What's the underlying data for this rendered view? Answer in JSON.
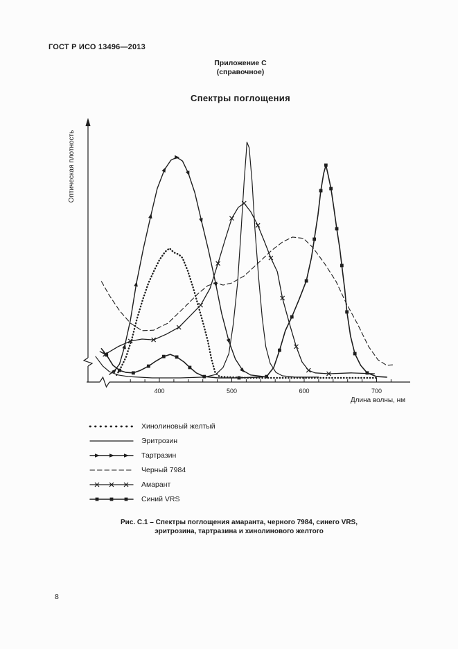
{
  "page": {
    "header": "ГОСТ Р ИСО 13496—2013",
    "annex_line1": "Приложение С",
    "annex_line2": "(справочное)",
    "section_title": "Спектры поглощения",
    "caption_line1": "Рис. С.1 – Спектры поглощения амаранта, черного 7984, синего VRS,",
    "caption_line2": "эритрозина, тартразина и хинолинового желтого",
    "page_number": "8"
  },
  "chart_data": {
    "type": "line",
    "title": "Спектры поглощения",
    "xlabel": "Длина волны, нм",
    "ylabel": "Оптическая плотность",
    "x_ticks": [
      400,
      500,
      600,
      700
    ],
    "x_minor_step": 20,
    "x_minor_range": [
      360,
      720
    ],
    "x_axis_break": true,
    "y_axis_arrow": true,
    "y_unit": "relative optical density 0-1",
    "ink_color": "#1f1f1f",
    "legend_position": "below-left",
    "series": [
      {
        "name": "Хинолиновый желтый",
        "style": "dotted",
        "marker": "none",
        "width": 2.4,
        "points": [
          [
            341,
            0.027
          ],
          [
            347,
            0.056
          ],
          [
            354,
            0.096
          ],
          [
            362,
            0.165
          ],
          [
            369,
            0.242
          ],
          [
            377,
            0.316
          ],
          [
            385,
            0.38
          ],
          [
            392,
            0.423
          ],
          [
            400,
            0.468
          ],
          [
            408,
            0.5
          ],
          [
            414,
            0.513
          ],
          [
            420,
            0.497
          ],
          [
            427,
            0.489
          ],
          [
            432,
            0.476
          ],
          [
            439,
            0.428
          ],
          [
            447,
            0.359
          ],
          [
            454,
            0.29
          ],
          [
            461,
            0.221
          ],
          [
            467,
            0.157
          ],
          [
            472,
            0.088
          ],
          [
            477,
            0.037
          ],
          [
            483,
            0.021
          ],
          [
            496,
            0.019
          ],
          [
            524,
            0.016
          ],
          [
            563,
            0.016
          ],
          [
            601,
            0.016
          ],
          [
            639,
            0.016
          ],
          [
            677,
            0.016
          ],
          [
            699,
            0.016
          ]
        ]
      },
      {
        "name": "Эритрозин",
        "style": "solid",
        "marker": "none",
        "width": 1.2,
        "points": [
          [
            312,
            0.098
          ],
          [
            322,
            0.061
          ],
          [
            331,
            0.04
          ],
          [
            343,
            0.027
          ],
          [
            357,
            0.021
          ],
          [
            390,
            0.016
          ],
          [
            429,
            0.016
          ],
          [
            462,
            0.019
          ],
          [
            478,
            0.029
          ],
          [
            488,
            0.056
          ],
          [
            496,
            0.109
          ],
          [
            502,
            0.221
          ],
          [
            508,
            0.38
          ],
          [
            513,
            0.588
          ],
          [
            517,
            0.769
          ],
          [
            520,
            0.88
          ],
          [
            521,
            0.92
          ],
          [
            524,
            0.899
          ],
          [
            528,
            0.769
          ],
          [
            532,
            0.588
          ],
          [
            537,
            0.402
          ],
          [
            542,
            0.247
          ],
          [
            547,
            0.136
          ],
          [
            553,
            0.072
          ],
          [
            561,
            0.037
          ],
          [
            570,
            0.024
          ],
          [
            587,
            0.019
          ],
          [
            620,
            0.019
          ]
        ]
      },
      {
        "name": "Тартразин",
        "style": "solid",
        "marker": "triangle",
        "width": 1.4,
        "points": [
          [
            331,
            0.029
          ],
          [
            338,
            0.043
          ],
          [
            345,
            0.069
          ],
          [
            352,
            0.136
          ],
          [
            360,
            0.237
          ],
          [
            368,
            0.375
          ],
          [
            378,
            0.513
          ],
          [
            388,
            0.636
          ],
          [
            397,
            0.742
          ],
          [
            407,
            0.814
          ],
          [
            416,
            0.851
          ],
          [
            424,
            0.862
          ],
          [
            432,
            0.848
          ],
          [
            440,
            0.801
          ],
          [
            449,
            0.726
          ],
          [
            458,
            0.62
          ],
          [
            468,
            0.503
          ],
          [
            478,
            0.375
          ],
          [
            486,
            0.263
          ],
          [
            496,
            0.157
          ],
          [
            505,
            0.088
          ],
          [
            515,
            0.045
          ],
          [
            526,
            0.027
          ],
          [
            544,
            0.021
          ]
        ]
      },
      {
        "name": "Черный 7984",
        "style": "dashed",
        "marker": "none",
        "width": 1.1,
        "points": [
          [
            320,
            0.386
          ],
          [
            331,
            0.332
          ],
          [
            345,
            0.274
          ],
          [
            360,
            0.226
          ],
          [
            376,
            0.197
          ],
          [
            392,
            0.199
          ],
          [
            412,
            0.226
          ],
          [
            434,
            0.285
          ],
          [
            453,
            0.338
          ],
          [
            467,
            0.37
          ],
          [
            478,
            0.38
          ],
          [
            488,
            0.372
          ],
          [
            500,
            0.38
          ],
          [
            517,
            0.407
          ],
          [
            536,
            0.455
          ],
          [
            555,
            0.505
          ],
          [
            570,
            0.537
          ],
          [
            584,
            0.556
          ],
          [
            599,
            0.551
          ],
          [
            612,
            0.516
          ],
          [
            628,
            0.455
          ],
          [
            644,
            0.386
          ],
          [
            658,
            0.303
          ],
          [
            674,
            0.221
          ],
          [
            689,
            0.136
          ],
          [
            702,
            0.085
          ],
          [
            714,
            0.064
          ],
          [
            722,
            0.066
          ]
        ]
      },
      {
        "name": "Амарант",
        "style": "solid",
        "marker": "x",
        "width": 1.3,
        "points": [
          [
            318,
            0.117
          ],
          [
            325,
            0.106
          ],
          [
            343,
            0.136
          ],
          [
            360,
            0.157
          ],
          [
            376,
            0.165
          ],
          [
            392,
            0.162
          ],
          [
            410,
            0.184
          ],
          [
            427,
            0.21
          ],
          [
            443,
            0.255
          ],
          [
            457,
            0.295
          ],
          [
            470,
            0.359
          ],
          [
            481,
            0.455
          ],
          [
            491,
            0.548
          ],
          [
            500,
            0.628
          ],
          [
            509,
            0.67
          ],
          [
            517,
            0.686
          ],
          [
            526,
            0.654
          ],
          [
            536,
            0.601
          ],
          [
            545,
            0.54
          ],
          [
            554,
            0.476
          ],
          [
            563,
            0.423
          ],
          [
            570,
            0.322
          ],
          [
            580,
            0.221
          ],
          [
            589,
            0.136
          ],
          [
            597,
            0.077
          ],
          [
            606,
            0.045
          ],
          [
            615,
            0.035
          ],
          [
            634,
            0.032
          ],
          [
            665,
            0.035
          ],
          [
            697,
            0.032
          ]
        ]
      },
      {
        "name": "Синий VRS",
        "style": "solid",
        "marker": "square",
        "width": 1.6,
        "points": [
          [
            320,
            0.128
          ],
          [
            327,
            0.104
          ],
          [
            336,
            0.064
          ],
          [
            345,
            0.045
          ],
          [
            354,
            0.037
          ],
          [
            364,
            0.035
          ],
          [
            374,
            0.045
          ],
          [
            385,
            0.061
          ],
          [
            395,
            0.08
          ],
          [
            406,
            0.098
          ],
          [
            415,
            0.106
          ],
          [
            424,
            0.096
          ],
          [
            434,
            0.077
          ],
          [
            442,
            0.056
          ],
          [
            451,
            0.035
          ],
          [
            462,
            0.021
          ],
          [
            481,
            0.016
          ],
          [
            510,
            0.016
          ],
          [
            534,
            0.019
          ],
          [
            548,
            0.021
          ],
          [
            558,
            0.056
          ],
          [
            566,
            0.122
          ],
          [
            574,
            0.197
          ],
          [
            583,
            0.25
          ],
          [
            593,
            0.317
          ],
          [
            603,
            0.388
          ],
          [
            610,
            0.476
          ],
          [
            614,
            0.548
          ],
          [
            619,
            0.641
          ],
          [
            623,
            0.734
          ],
          [
            627,
            0.801
          ],
          [
            630,
            0.832
          ],
          [
            633,
            0.795
          ],
          [
            637,
            0.742
          ],
          [
            641,
            0.668
          ],
          [
            645,
            0.588
          ],
          [
            649,
            0.516
          ],
          [
            652,
            0.447
          ],
          [
            656,
            0.356
          ],
          [
            659,
            0.269
          ],
          [
            664,
            0.176
          ],
          [
            670,
            0.109
          ],
          [
            678,
            0.064
          ],
          [
            687,
            0.035
          ],
          [
            700,
            0.021
          ],
          [
            714,
            0.019
          ]
        ]
      }
    ]
  }
}
